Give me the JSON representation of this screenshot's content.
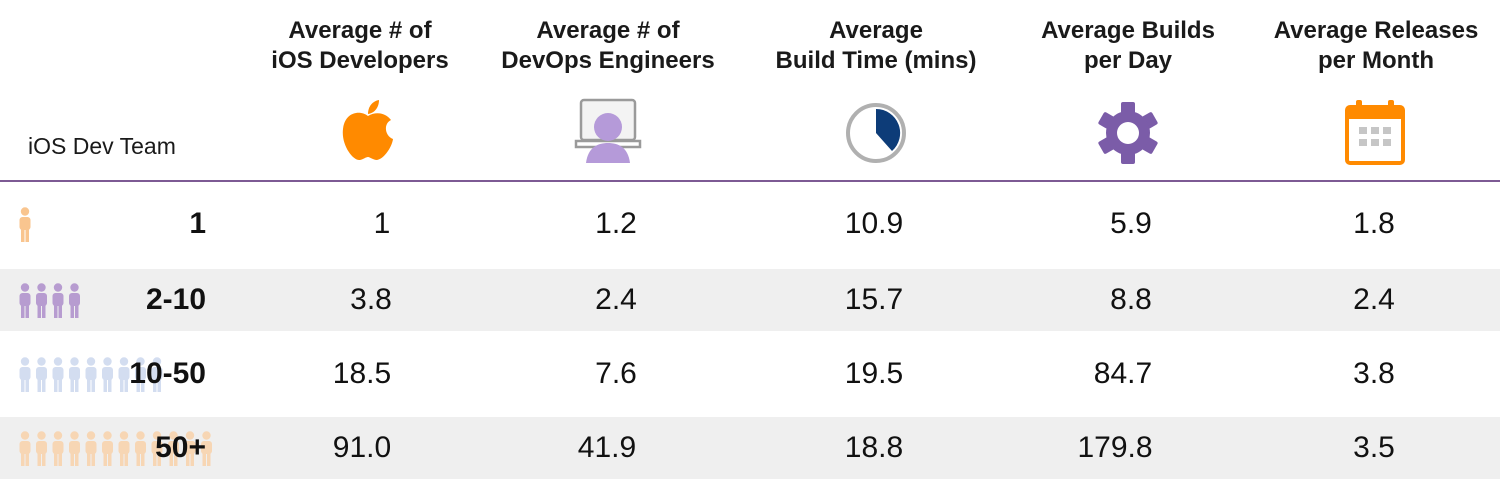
{
  "chart_data": {
    "type": "table",
    "row_header": "iOS Dev Team",
    "columns": [
      {
        "line1": "Average # of",
        "line2": "iOS Developers",
        "icon": "apple-icon",
        "color": "#ff8a00"
      },
      {
        "line1": "Average # of",
        "line2": "DevOps Engineers",
        "icon": "devops-engineer-icon",
        "color": "#b59ad9"
      },
      {
        "line1": "Average",
        "line2": "Build Time (mins)",
        "icon": "clock-icon",
        "color": "#0d3c78"
      },
      {
        "line1": "Average Builds",
        "line2": "per Day",
        "icon": "gear-icon",
        "color": "#7b5ca8"
      },
      {
        "line1": "Average Releases",
        "line2": "per Month",
        "icon": "calendar-icon",
        "color": "#ff8a00"
      }
    ],
    "rows": [
      {
        "team": "1",
        "people": 1,
        "person_color": "#f9c58f",
        "values": [
          "1",
          "1.2",
          "10.9",
          "5.9",
          "1.8"
        ]
      },
      {
        "team": "2-10",
        "people": 4,
        "person_color": "#b79cd0",
        "values": [
          "3.8",
          "2.4",
          "15.7",
          "8.8",
          "2.4"
        ]
      },
      {
        "team": "10-50",
        "people": 9,
        "person_color": "#d3ddf0",
        "values": [
          "18.5",
          "7.6",
          "19.5",
          "84.7",
          "3.8"
        ]
      },
      {
        "team": "50+",
        "people": 12,
        "person_color": "#f7d6b4",
        "values": [
          "91.0",
          "41.9",
          "18.8",
          "179.8",
          "3.5"
        ]
      }
    ],
    "rule_color": "#7d5a94",
    "shade_color": "#efefef"
  }
}
